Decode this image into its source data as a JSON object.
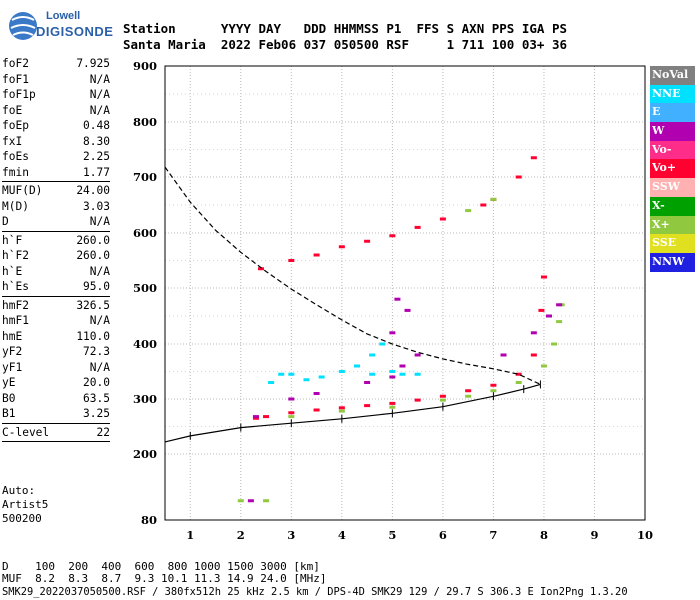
{
  "logo": {
    "line1": "Lowell",
    "line2": "DIGISONDE"
  },
  "header": {
    "row1": "Station      YYYY DAY   DDD HHMMSS P1  FFS S AXN PPS IGA PS",
    "row2": "Santa Maria  2022 Feb06 037 050500 RSF     1 711 100 03+ 36"
  },
  "params": [
    {
      "name": "foF2",
      "value": "7.925"
    },
    {
      "name": "foF1",
      "value": "N/A"
    },
    {
      "name": "foF1p",
      "value": "N/A"
    },
    {
      "name": "foE",
      "value": "N/A"
    },
    {
      "name": "foEp",
      "value": "0.48"
    },
    {
      "name": "fxI",
      "value": "8.30"
    },
    {
      "name": "foEs",
      "value": "2.25"
    },
    {
      "name": "fmin",
      "value": "1.77"
    },
    {
      "sep": true
    },
    {
      "name": "MUF(D)",
      "value": "24.00"
    },
    {
      "name": "M(D)",
      "value": "3.03"
    },
    {
      "name": "D",
      "value": "N/A"
    },
    {
      "sep": true
    },
    {
      "name": "h`F",
      "value": "260.0"
    },
    {
      "name": "h`F2",
      "value": "260.0"
    },
    {
      "name": "h`E",
      "value": "N/A"
    },
    {
      "name": "h`Es",
      "value": "95.0"
    },
    {
      "sep": true
    },
    {
      "name": "hmF2",
      "value": "326.5"
    },
    {
      "name": "hmF1",
      "value": "N/A"
    },
    {
      "name": "hmE",
      "value": "110.0"
    },
    {
      "name": "yF2",
      "value": "72.3"
    },
    {
      "name": "yF1",
      "value": "N/A"
    },
    {
      "name": "yE",
      "value": "20.0"
    },
    {
      "name": "B0",
      "value": "63.5"
    },
    {
      "name": "B1",
      "value": "3.25"
    },
    {
      "sep": true
    },
    {
      "name": "C-level",
      "value": "22"
    },
    {
      "sep": true
    }
  ],
  "auto": {
    "line1": "Auto:",
    "line2": "Artist5",
    "line3": "500200"
  },
  "footer": {
    "d_row": "D    100  200  400  600  800 1000 1500 3000 [km]",
    "muf_row": "MUF  8.2  8.3  8.7  9.3 10.1 11.3 14.9 24.0 [MHz]",
    "file_row": "SMK29_2022037050500.RSF / 380fx512h 25 kHz 2.5 km / DPS-4D SMK29 129 / 29.7 S 306.3 E Ion2Png 1.3.20"
  },
  "legend": [
    {
      "label": "NoVal",
      "color": "#808080"
    },
    {
      "label": "NNE",
      "color": "#00e0ff"
    },
    {
      "label": "E",
      "color": "#40b0ff"
    },
    {
      "label": "W",
      "color": "#b000b0"
    },
    {
      "label": "Vo-",
      "color": "#ff2d8a"
    },
    {
      "label": "Vo+",
      "color": "#ff0030"
    },
    {
      "label": "SSW",
      "color": "#ffb0b0"
    },
    {
      "label": "X-",
      "color": "#00a000"
    },
    {
      "label": "X+",
      "color": "#90c840"
    },
    {
      "label": "SSE",
      "color": "#e0e020"
    },
    {
      "label": "NNW",
      "color": "#2020e0"
    }
  ],
  "chart_data": {
    "type": "scatter",
    "title": "",
    "xlabel": "",
    "ylabel": "",
    "xlim": [
      0.5,
      10
    ],
    "ylim": [
      80,
      900
    ],
    "x_ticks": [
      1,
      2,
      3,
      4,
      5,
      6,
      7,
      8,
      9,
      10
    ],
    "y_ticks": [
      80,
      200,
      300,
      400,
      500,
      600,
      700,
      800,
      900
    ],
    "grid": true,
    "legend_position": "right",
    "series": [
      {
        "name": "Vo+",
        "color": "#ff0030",
        "points": [
          [
            2.3,
            265
          ],
          [
            2.5,
            268
          ],
          [
            3.0,
            275
          ],
          [
            3.5,
            280
          ],
          [
            4.0,
            284
          ],
          [
            4.5,
            288
          ],
          [
            5.0,
            292
          ],
          [
            5.5,
            298
          ],
          [
            6.0,
            305
          ],
          [
            6.5,
            315
          ],
          [
            7.0,
            325
          ],
          [
            7.5,
            345
          ],
          [
            7.8,
            380
          ],
          [
            7.95,
            460
          ],
          [
            8.0,
            520
          ],
          [
            2.4,
            535
          ],
          [
            3.0,
            550
          ],
          [
            3.5,
            560
          ],
          [
            4.0,
            575
          ],
          [
            4.5,
            585
          ],
          [
            5.0,
            595
          ],
          [
            5.5,
            610
          ],
          [
            6.0,
            625
          ],
          [
            6.8,
            650
          ],
          [
            7.0,
            660
          ],
          [
            7.5,
            700
          ],
          [
            7.8,
            735
          ]
        ]
      },
      {
        "name": "X+",
        "color": "#90c840",
        "points": [
          [
            3.0,
            268
          ],
          [
            4.0,
            278
          ],
          [
            5.0,
            285
          ],
          [
            6.0,
            298
          ],
          [
            6.5,
            305
          ],
          [
            7.0,
            315
          ],
          [
            7.5,
            330
          ],
          [
            8.0,
            360
          ],
          [
            8.2,
            400
          ],
          [
            8.3,
            440
          ],
          [
            8.35,
            470
          ],
          [
            6.5,
            640
          ],
          [
            7.0,
            660
          ],
          [
            2.0,
            115
          ],
          [
            2.5,
            115
          ]
        ]
      },
      {
        "name": "NNE",
        "color": "#00e0ff",
        "points": [
          [
            2.6,
            330
          ],
          [
            2.8,
            345
          ],
          [
            3.0,
            345
          ],
          [
            3.3,
            335
          ],
          [
            3.6,
            340
          ],
          [
            4.0,
            350
          ],
          [
            4.3,
            360
          ],
          [
            4.6,
            345
          ],
          [
            5.0,
            350
          ],
          [
            5.2,
            345
          ],
          [
            5.5,
            345
          ],
          [
            4.6,
            380
          ],
          [
            4.8,
            400
          ]
        ]
      },
      {
        "name": "W",
        "color": "#b000b0",
        "points": [
          [
            2.3,
            268
          ],
          [
            3.0,
            300
          ],
          [
            3.5,
            310
          ],
          [
            4.5,
            330
          ],
          [
            5.0,
            340
          ],
          [
            5.2,
            360
          ],
          [
            5.0,
            420
          ],
          [
            5.1,
            480
          ],
          [
            5.3,
            460
          ],
          [
            5.5,
            380
          ],
          [
            7.2,
            380
          ],
          [
            7.8,
            420
          ],
          [
            8.1,
            450
          ],
          [
            8.3,
            470
          ],
          [
            2.2,
            115
          ]
        ]
      }
    ],
    "lines": [
      {
        "name": "virtual height profile",
        "style": "solid-ticked",
        "points": [
          [
            0.5,
            222
          ],
          [
            1,
            233
          ],
          [
            2,
            248
          ],
          [
            3,
            256
          ],
          [
            4,
            264
          ],
          [
            5,
            274
          ],
          [
            6,
            286
          ],
          [
            7,
            305
          ],
          [
            7.6,
            318
          ],
          [
            7.93,
            326.5
          ]
        ]
      },
      {
        "name": "true height profile",
        "style": "dashed",
        "points": [
          [
            0.5,
            718
          ],
          [
            1,
            655
          ],
          [
            1.5,
            605
          ],
          [
            2,
            565
          ],
          [
            2.5,
            530
          ],
          [
            3,
            498
          ],
          [
            3.5,
            470
          ],
          [
            4,
            443
          ],
          [
            4.5,
            418
          ],
          [
            5,
            400
          ],
          [
            5.5,
            385
          ],
          [
            6,
            373
          ],
          [
            6.5,
            363
          ],
          [
            7,
            355
          ],
          [
            7.5,
            345
          ],
          [
            7.93,
            326.5
          ]
        ]
      }
    ]
  }
}
